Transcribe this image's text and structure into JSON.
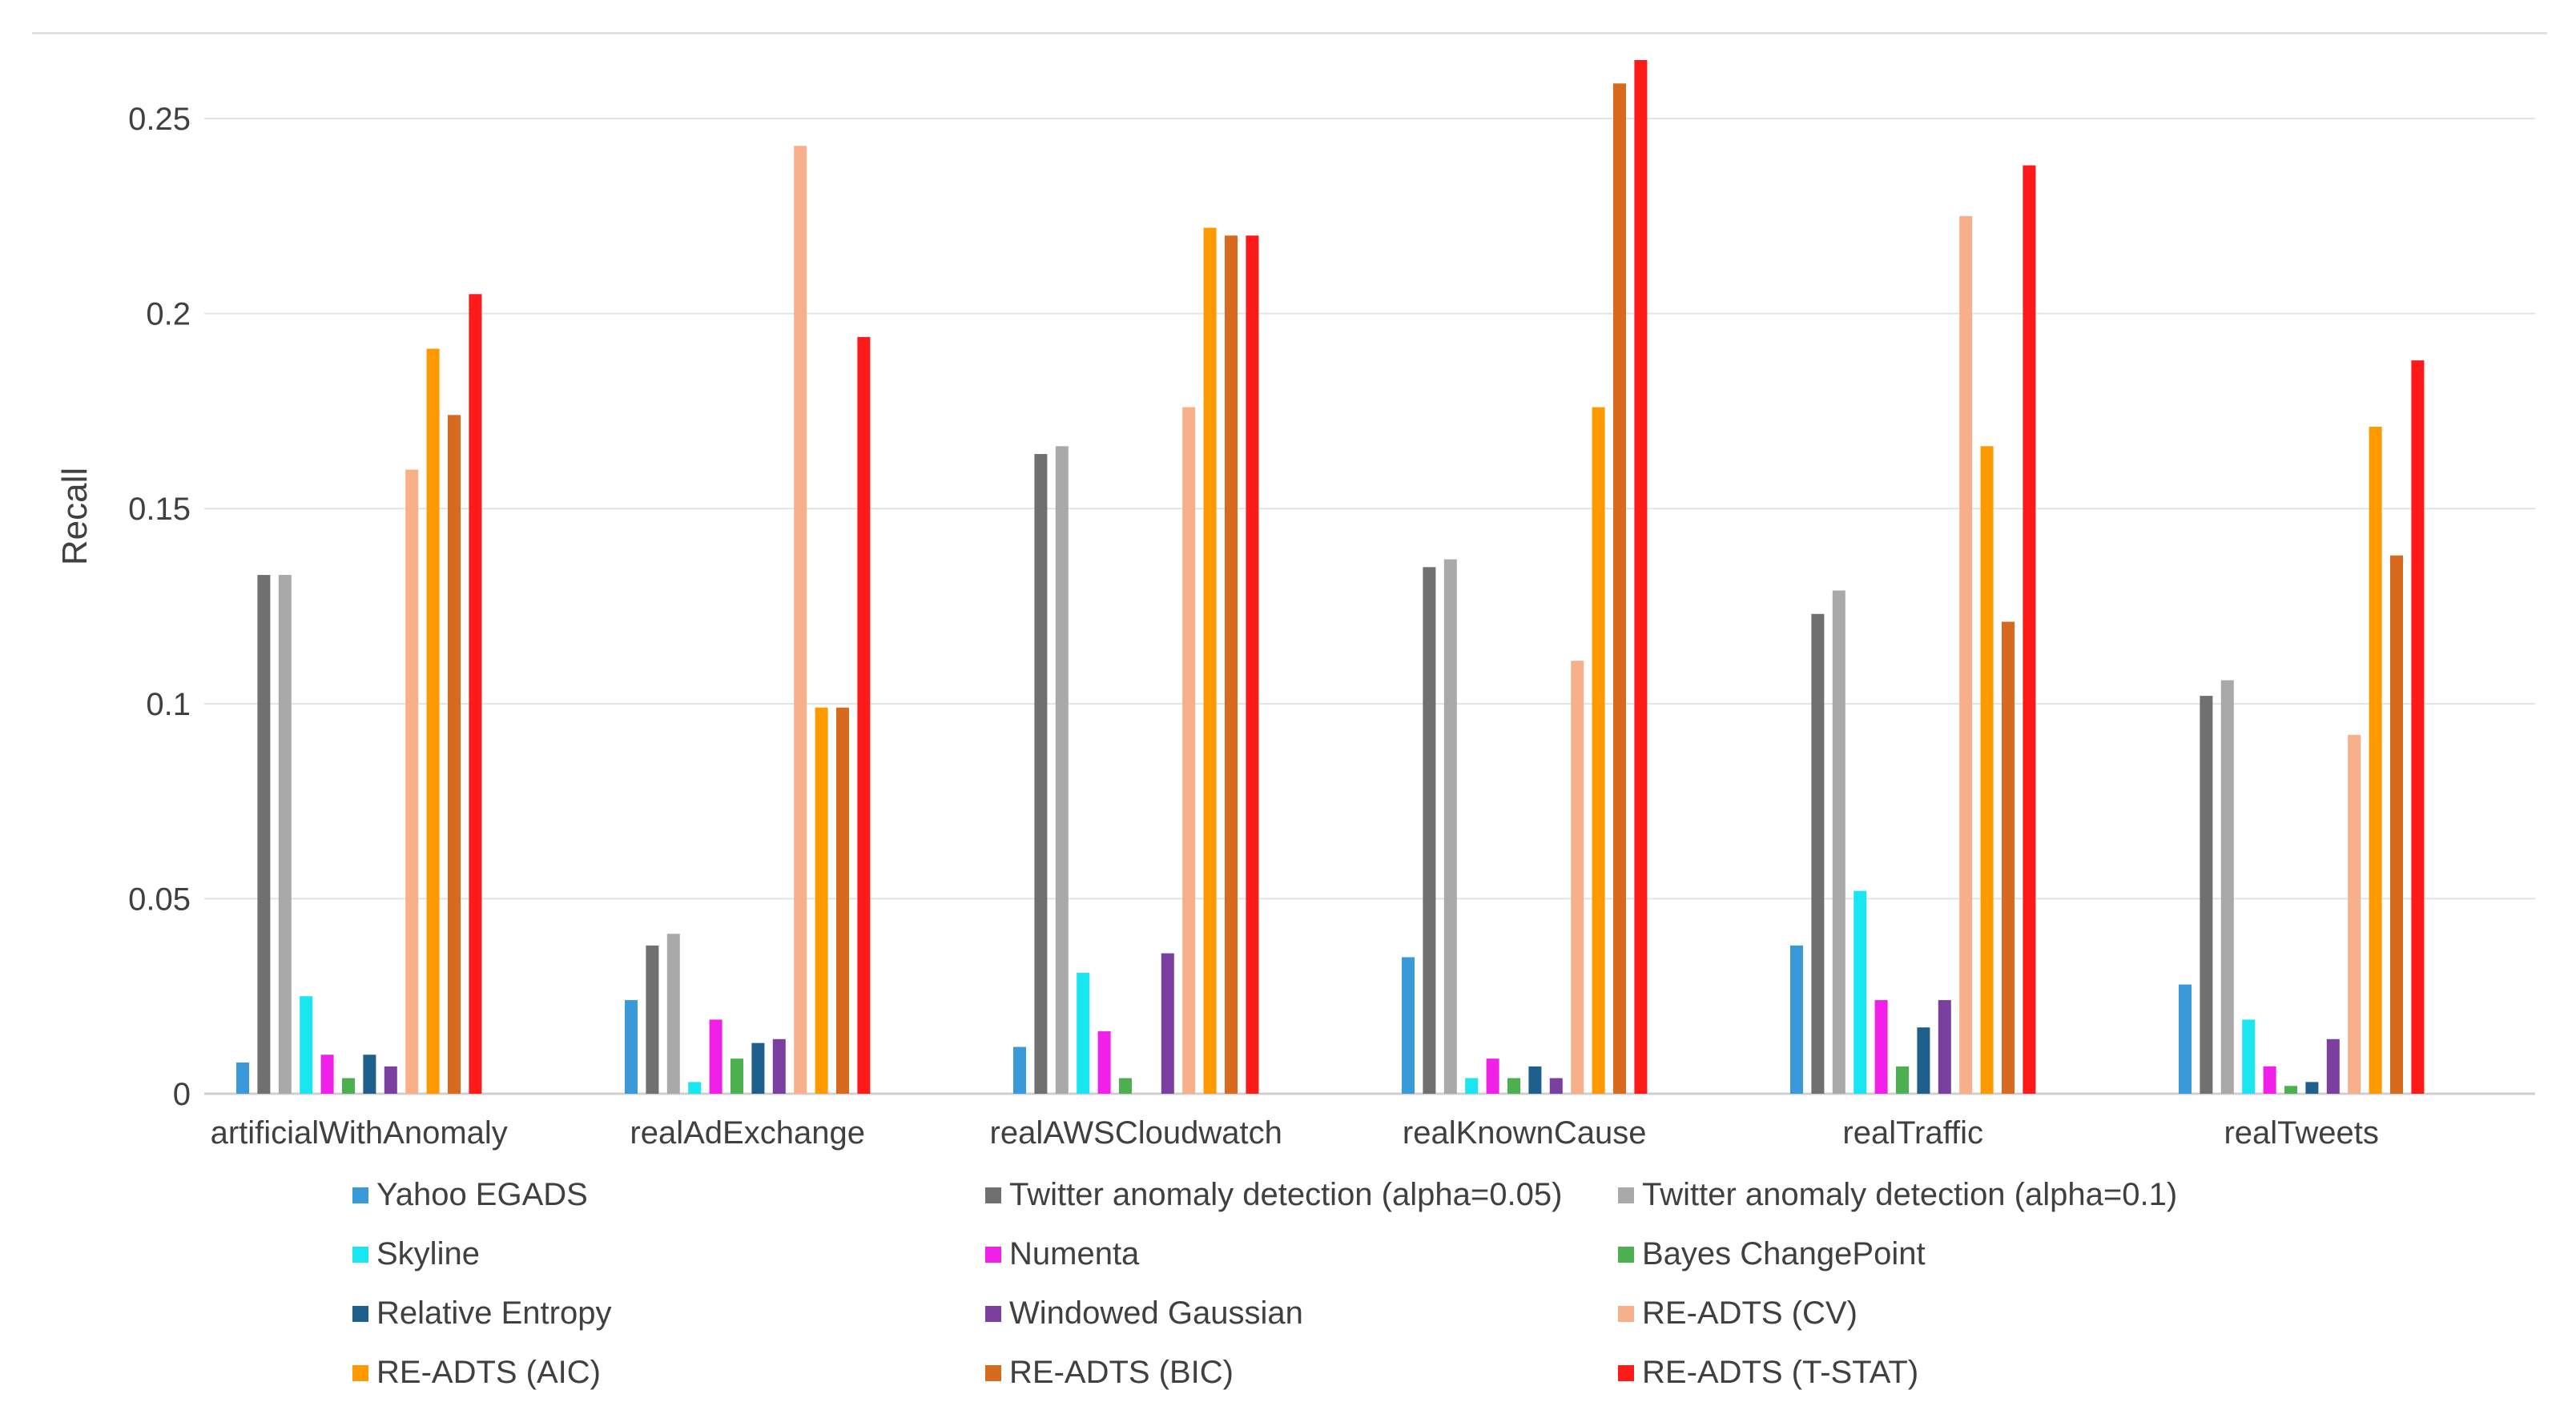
{
  "chart_data": {
    "type": "bar",
    "title": "",
    "xlabel": "",
    "ylabel": "Recall",
    "ylim": [
      0,
      0.265
    ],
    "yticks": [
      {
        "value": 0,
        "label": "0"
      },
      {
        "value": 0.05,
        "label": "0.05"
      },
      {
        "value": 0.1,
        "label": "0.1"
      },
      {
        "value": 0.15,
        "label": "0.15"
      },
      {
        "value": 0.2,
        "label": "0.2"
      },
      {
        "value": 0.25,
        "label": "0.25"
      }
    ],
    "grid": true,
    "legend_position": "bottom",
    "categories": [
      "artificialWithAnomaly",
      "realAdExchange",
      "realAWSCloudwatch",
      "realKnownCause",
      "realTraffic",
      "realTweets"
    ],
    "series": [
      {
        "name": "Yahoo EGADS",
        "color": "#3a9ad9",
        "values": [
          0.008,
          0.024,
          0.012,
          0.035,
          0.038,
          0.028
        ]
      },
      {
        "name": "Twitter anomaly detection (alpha=0.05)",
        "color": "#707070",
        "values": [
          0.133,
          0.038,
          0.164,
          0.135,
          0.123,
          0.102
        ]
      },
      {
        "name": "Twitter anomaly detection (alpha=0.1)",
        "color": "#a9a9a9",
        "values": [
          0.133,
          0.041,
          0.166,
          0.137,
          0.129,
          0.106
        ]
      },
      {
        "name": "Skyline",
        "color": "#19e6f0",
        "values": [
          0.025,
          0.003,
          0.031,
          0.004,
          0.052,
          0.019
        ]
      },
      {
        "name": "Numenta",
        "color": "#f020e8",
        "values": [
          0.01,
          0.019,
          0.016,
          0.009,
          0.024,
          0.007
        ]
      },
      {
        "name": "Bayes ChangePoint",
        "color": "#4caf50",
        "values": [
          0.004,
          0.009,
          0.004,
          0.004,
          0.007,
          0.002
        ]
      },
      {
        "name": "Relative Entropy",
        "color": "#1f5f8b",
        "values": [
          0.01,
          0.013,
          0.0,
          0.007,
          0.017,
          0.003
        ]
      },
      {
        "name": "Windowed Gaussian",
        "color": "#7b3fa0",
        "values": [
          0.007,
          0.014,
          0.036,
          0.004,
          0.024,
          0.014
        ]
      },
      {
        "name": "RE-ADTS (CV)",
        "color": "#f7b08a",
        "values": [
          0.16,
          0.243,
          0.176,
          0.111,
          0.225,
          0.092
        ]
      },
      {
        "name": "RE-ADTS (AIC)",
        "color": "#ff9900",
        "values": [
          0.191,
          0.099,
          0.222,
          0.176,
          0.166,
          0.171
        ]
      },
      {
        "name": "RE-ADTS (BIC)",
        "color": "#d86a1f",
        "values": [
          0.174,
          0.099,
          0.22,
          0.259,
          0.121,
          0.138
        ]
      },
      {
        "name": "RE-ADTS (T-STAT)",
        "color": "#ff1a1a",
        "values": [
          0.205,
          0.194,
          0.22,
          0.265,
          0.238,
          0.188
        ]
      }
    ]
  }
}
